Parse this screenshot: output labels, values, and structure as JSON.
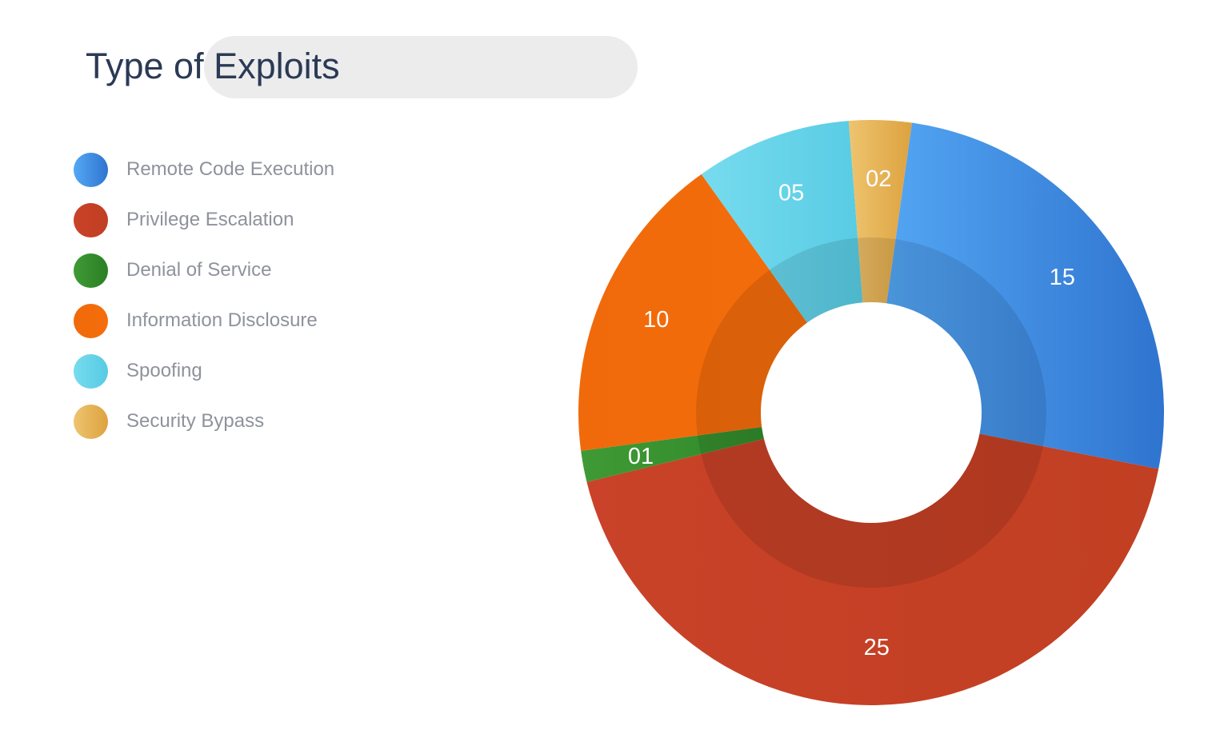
{
  "chart_data": {
    "type": "pie",
    "title": "Type of Exploits",
    "categories": [
      "Remote Code Execution",
      "Privilege Escalation",
      "Denial of Service",
      "Information Disclosure",
      "Spoofing",
      "Security Bypass"
    ],
    "values": [
      15,
      25,
      1,
      10,
      5,
      2
    ],
    "value_labels": [
      "15",
      "25",
      "01",
      "10",
      "05",
      "02"
    ],
    "colors": [
      [
        "#55a8f5",
        "#2f74cf"
      ],
      [
        "#c94229",
        "#c13f22"
      ],
      [
        "#3f9a35",
        "#2a7f24"
      ],
      [
        "#f06a0b",
        "#f56d0b"
      ],
      [
        "#77dbee",
        "#56cbe3"
      ],
      [
        "#eec46f",
        "#dda23f"
      ]
    ],
    "donut": true,
    "legend_position": "left"
  }
}
